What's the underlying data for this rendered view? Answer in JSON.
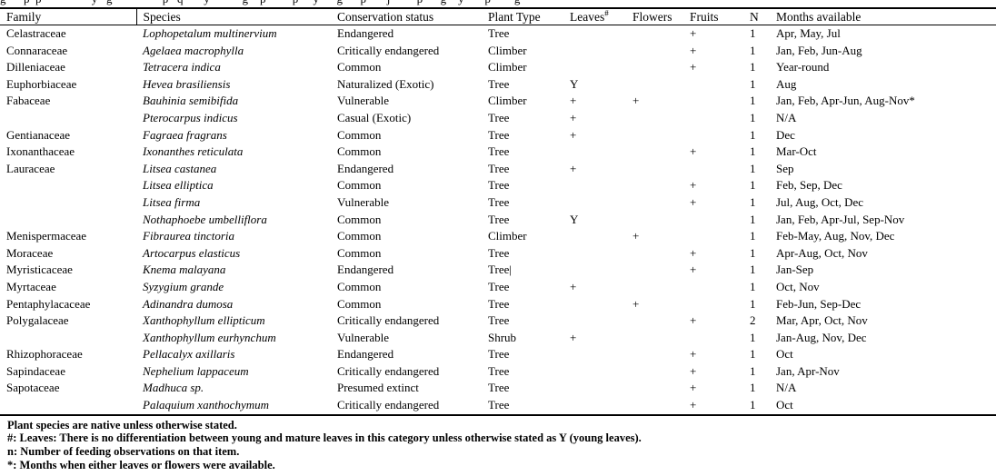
{
  "caption_remnant": "g      p  p                 y   g                 p   q       y           g    p         p     y      g      p       j         p      g    y       p        g",
  "table": {
    "columns": [
      "Family",
      "Species",
      "Conservation status",
      "Plant Type",
      "Leaves",
      "Flowers",
      "Fruits",
      "N",
      "Months available"
    ],
    "leaves_sup": "#",
    "rows": [
      {
        "family": "Celastraceae",
        "species": "Lophopetalum multinervium",
        "status": "Endangered",
        "type": "Tree",
        "leaves": "",
        "flowers": "",
        "fruits": "+",
        "n": "1",
        "months": "Apr, May, Jul"
      },
      {
        "family": "Connaraceae",
        "species": "Agelaea macrophylla",
        "status": "Critically endangered",
        "type": "Climber",
        "leaves": "",
        "flowers": "",
        "fruits": "+",
        "n": "1",
        "months": "Jan, Feb, Jun-Aug"
      },
      {
        "family": "Dilleniaceae",
        "species": "Tetracera indica",
        "status": "Common",
        "type": "Climber",
        "leaves": "",
        "flowers": "",
        "fruits": "+",
        "n": "1",
        "months": "Year-round"
      },
      {
        "family": "Euphorbiaceae",
        "species": "Hevea brasiliensis",
        "status": "Naturalized (Exotic)",
        "type": "Tree",
        "leaves": "Y",
        "flowers": "",
        "fruits": "",
        "n": "1",
        "months": "Aug"
      },
      {
        "family": "Fabaceae",
        "species": "Bauhinia semibifida",
        "status": "Vulnerable",
        "type": "Climber",
        "leaves": "+",
        "flowers": "+",
        "fruits": "",
        "n": "1",
        "months": "Jan, Feb, Apr-Jun, Aug-Nov*"
      },
      {
        "family": "",
        "species": "Pterocarpus indicus",
        "status": "Casual (Exotic)",
        "type": "Tree",
        "leaves": "+",
        "flowers": "",
        "fruits": "",
        "n": "1",
        "months": "N/A"
      },
      {
        "family": "Gentianaceae",
        "species": "Fagraea fragrans",
        "status": "Common",
        "type": "Tree",
        "leaves": "+",
        "flowers": "",
        "fruits": "",
        "n": "1",
        "months": "Dec"
      },
      {
        "family": "Ixonanthaceae",
        "species": "Ixonanthes reticulata",
        "status": "Common",
        "type": "Tree",
        "leaves": "",
        "flowers": "",
        "fruits": "+",
        "n": "1",
        "months": "Mar-Oct"
      },
      {
        "family": "Lauraceae",
        "species": "Litsea castanea",
        "status": "Endangered",
        "type": "Tree",
        "leaves": "+",
        "flowers": "",
        "fruits": "",
        "n": "1",
        "months": "Sep"
      },
      {
        "family": "",
        "species": "Litsea elliptica",
        "status": "Common",
        "type": "Tree",
        "leaves": "",
        "flowers": "",
        "fruits": "+",
        "n": "1",
        "months": "Feb, Sep, Dec"
      },
      {
        "family": "",
        "species": "Litsea firma",
        "status": "Vulnerable",
        "type": "Tree",
        "leaves": "",
        "flowers": "",
        "fruits": "+",
        "n": "1",
        "months": "Jul, Aug, Oct, Dec"
      },
      {
        "family": "",
        "species": "Nothaphoebe umbelliflora",
        "status": "Common",
        "type": "Tree",
        "leaves": "Y",
        "flowers": "",
        "fruits": "",
        "n": "1",
        "months": "Jan, Feb, Apr-Jul, Sep-Nov"
      },
      {
        "family": "Menispermaceae",
        "species": "Fibraurea tinctoria",
        "status": "Common",
        "type": "Climber",
        "leaves": "",
        "flowers": "+",
        "fruits": "",
        "n": "1",
        "months": "Feb-May, Aug, Nov, Dec"
      },
      {
        "family": "Moraceae",
        "species": "Artocarpus elasticus",
        "status": "Common",
        "type": "Tree",
        "leaves": "",
        "flowers": "",
        "fruits": "+",
        "n": "1",
        "months": "Apr-Aug, Oct, Nov"
      },
      {
        "family": "Myristicaceae",
        "species": "Knema malayana",
        "status": "Endangered",
        "type": "Tree",
        "type_cursor": true,
        "leaves": "",
        "flowers": "",
        "fruits": "+",
        "n": "1",
        "months": "Jan-Sep"
      },
      {
        "family": "Myrtaceae",
        "species": "Syzygium grande",
        "status": "Common",
        "type": "Tree",
        "leaves": "+",
        "flowers": "",
        "fruits": "",
        "n": "1",
        "months": "Oct, Nov"
      },
      {
        "family": "Pentaphylacaceae",
        "species": "Adinandra dumosa",
        "status": "Common",
        "type": "Tree",
        "leaves": "",
        "flowers": "+",
        "fruits": "",
        "n": "1",
        "months": "Feb-Jun, Sep-Dec"
      },
      {
        "family": "Polygalaceae",
        "species": "Xanthophyllum ellipticum",
        "status": "Critically endangered",
        "type": "Tree",
        "leaves": "",
        "flowers": "",
        "fruits": "+",
        "n": "2",
        "months": "Mar, Apr, Oct, Nov"
      },
      {
        "family": "",
        "species": "Xanthophyllum eurhynchum",
        "status": "Vulnerable",
        "type": "Shrub",
        "leaves": "+",
        "flowers": "",
        "fruits": "",
        "n": "1",
        "months": "Jan-Aug, Nov, Dec"
      },
      {
        "family": "Rhizophoraceae",
        "species": "Pellacalyx axillaris",
        "status": "Endangered",
        "type": "Tree",
        "leaves": "",
        "flowers": "",
        "fruits": "+",
        "n": "1",
        "months": "Oct"
      },
      {
        "family": "Sapindaceae",
        "species": "Nephelium lappaceum",
        "status": "Critically endangered",
        "type": "Tree",
        "leaves": "",
        "flowers": "",
        "fruits": "+",
        "n": "1",
        "months": "Jan, Apr-Nov"
      },
      {
        "family": "Sapotaceae",
        "species": "Madhuca sp.",
        "status": "Presumed extinct",
        "type": "Tree",
        "leaves": "",
        "flowers": "",
        "fruits": "+",
        "n": "1",
        "months": "N/A"
      },
      {
        "family": "",
        "species": "Palaquium xanthochymum",
        "status": "Critically endangered",
        "type": "Tree",
        "leaves": "",
        "flowers": "",
        "fruits": "+",
        "n": "1",
        "months": "Oct"
      }
    ]
  },
  "footnotes": [
    "Plant species are native unless otherwise stated.",
    "#: Leaves: There is no differentiation between young and mature leaves in this category unless otherwise stated as Y (young leaves).",
    "n: Number of feeding observations on that item.",
    "*: Months when either leaves or flowers were available."
  ]
}
